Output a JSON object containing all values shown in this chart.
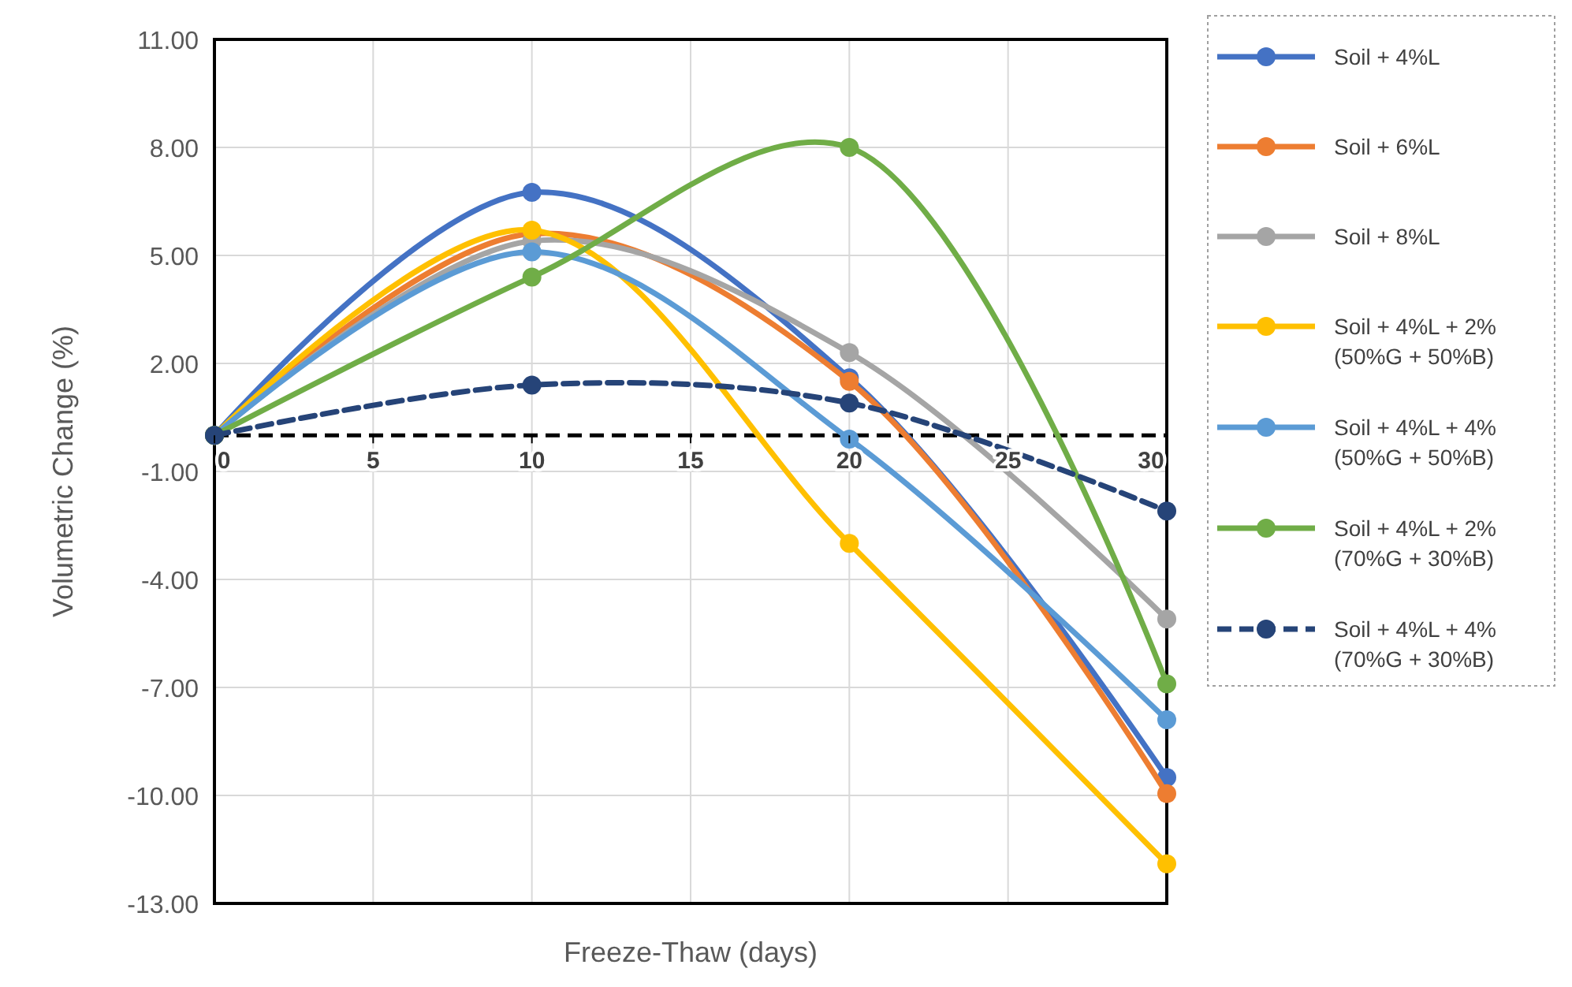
{
  "chart_data": {
    "type": "line",
    "xlabel": "Freeze-Thaw (days)",
    "ylabel": "Volumetric Change (%)",
    "x": [
      0,
      10,
      20,
      30
    ],
    "xlim": [
      0,
      30
    ],
    "xticks": [
      0,
      5,
      10,
      15,
      20,
      25,
      30
    ],
    "ylim": [
      -13,
      11
    ],
    "yticks": [
      {
        "value": -13,
        "label": "-13.00"
      },
      {
        "value": -10,
        "label": "-10.00"
      },
      {
        "value": -7,
        "label": "-7.00"
      },
      {
        "value": -4,
        "label": "-4.00"
      },
      {
        "value": -1,
        "label": "-1.00"
      },
      {
        "value": 2,
        "label": "2.00"
      },
      {
        "value": 5,
        "label": "5.00"
      },
      {
        "value": 8,
        "label": "8.00"
      },
      {
        "value": 11,
        "label": "11.00"
      }
    ],
    "grid": true,
    "legend": "right",
    "marker": "circle",
    "ref_lines": [
      {
        "axis": "y",
        "value": 0,
        "color": "#000000",
        "line_style": "dashed"
      }
    ],
    "series": [
      {
        "name": "Soil + 4%L",
        "color": "#4472c4",
        "values": [
          0,
          6.75,
          1.6,
          -9.5
        ]
      },
      {
        "name": "Soil + 6%L",
        "color": "#ed7d31",
        "values": [
          0,
          5.6,
          1.5,
          -9.95
        ]
      },
      {
        "name": "Soil + 8%L",
        "color": "#a5a5a5",
        "values": [
          0,
          5.4,
          2.3,
          -5.1
        ]
      },
      {
        "name": "Soil + 4%L + 2% (50%G + 50%B)",
        "color": "#ffc000",
        "values": [
          0,
          5.7,
          -3.0,
          -11.9
        ]
      },
      {
        "name": "Soil + 4%L + 4% (50%G + 50%B)",
        "color": "#5b9bd5",
        "values": [
          0,
          5.1,
          -0.1,
          -7.9
        ]
      },
      {
        "name": "Soil + 4%L + 2% (70%G + 30%B)",
        "color": "#70ad47",
        "values": [
          0,
          4.4,
          8.0,
          -6.9
        ]
      },
      {
        "name": "Soil + 4%L + 4% (70%G + 30%B)",
        "color": "#264478",
        "values": [
          0,
          1.4,
          0.9,
          -2.1
        ],
        "line_style": "dashed"
      }
    ]
  }
}
